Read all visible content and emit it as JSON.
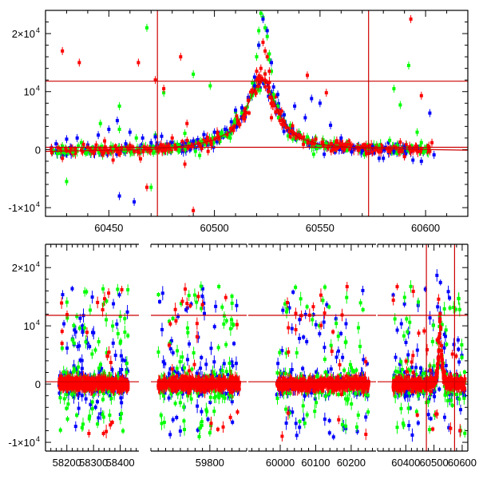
{
  "colors": {
    "red": "#ff0000",
    "green": "#00ff00",
    "blue": "#0000ff",
    "ref_line": "#cc0000",
    "axis": "#000000"
  },
  "chart_data": [
    {
      "type": "scatter",
      "title": "",
      "xlabel": "",
      "ylabel": "",
      "xlim": [
        60420,
        60620
      ],
      "ylim": [
        -11500,
        24000
      ],
      "grid": false,
      "legend": "none",
      "x_ticks": [
        60450,
        60500,
        60550,
        60600
      ],
      "y_ticks": [
        {
          "value": -10000,
          "label": "-1×10",
          "exp": "4"
        },
        {
          "value": 0,
          "label": "0",
          "exp": ""
        },
        {
          "value": 10000,
          "label": "10",
          "exp": "4"
        },
        {
          "value": 20000,
          "label": "2×10",
          "exp": "4"
        }
      ],
      "reference_lines": {
        "horizontal": [
          11800,
          400
        ],
        "vertical": [
          60473,
          60573
        ]
      },
      "model_curve": {
        "x": [
          60420,
          60470,
          60490,
          60500,
          60508,
          60514,
          60518,
          60521,
          60523,
          60525,
          60528,
          60532,
          60536,
          60540,
          60550,
          60570,
          60620
        ],
        "y": [
          -300,
          0,
          800,
          1700,
          3200,
          6200,
          9500,
          11600,
          12000,
          11300,
          8500,
          5200,
          3200,
          2000,
          900,
          200,
          -100
        ]
      },
      "series": [
        {
          "color": "green",
          "x": [
            60424,
            60428,
            60433,
            60437,
            60440,
            60446,
            60452,
            60455,
            60458,
            60463,
            60468,
            60472,
            60476,
            60480,
            60486,
            60490,
            60494,
            60498,
            60503,
            60507,
            60510,
            60513,
            60516,
            60518,
            60520,
            60521,
            60522,
            60523,
            60524,
            60525,
            60526,
            60527,
            60528,
            60530,
            60533,
            60536,
            60540,
            60544,
            60548,
            60553,
            60558,
            60563,
            60568,
            60573,
            60578,
            60583,
            60588,
            60592,
            60596,
            60600,
            60430,
            60455,
            60470,
            60493,
            60510,
            60517,
            60521,
            60526,
            60531,
            60547,
            60571,
            60585,
            60598,
            60486
          ],
          "y": [
            -200,
            600,
            -400,
            1200,
            500,
            4500,
            100,
            7500,
            -200,
            2000,
            21000,
            2500,
            9800,
            600,
            300,
            13000,
            1300,
            11000,
            2600,
            2500,
            4800,
            6300,
            8500,
            11500,
            16000,
            20500,
            23500,
            22800,
            21000,
            19500,
            16500,
            13500,
            9500,
            7500,
            6000,
            4200,
            3000,
            2200,
            2000,
            1000,
            800,
            1000,
            600,
            200,
            500,
            1600,
            7700,
            14500,
            3000,
            0,
            -5500,
            3500,
            -6500,
            -1000,
            6500,
            9000,
            18000,
            15500,
            5500,
            -800,
            -900,
            10500,
            1200,
            2800
          ]
        },
        {
          "color": "blue",
          "x": [
            60425,
            60430,
            60435,
            60440,
            60445,
            60450,
            60454,
            60458,
            60462,
            60466,
            60470,
            60475,
            60480,
            60485,
            60490,
            60495,
            60500,
            60505,
            60510,
            60513,
            60516,
            60519,
            60521,
            60523,
            60525,
            60527,
            60530,
            60533,
            60537,
            60540,
            60543,
            60546,
            60550,
            60555,
            60560,
            60565,
            60570,
            60575,
            60580,
            60585,
            60590,
            60594,
            60598,
            60602,
            60455,
            60460,
            60472,
            60508,
            60519,
            60528,
            60538,
            60552,
            60566,
            60578,
            60590,
            60604
          ],
          "y": [
            1000,
            1800,
            2000,
            800,
            2500,
            3500,
            5000,
            1000,
            -9000,
            2000,
            1200,
            2300,
            1300,
            600,
            1500,
            2600,
            3000,
            3500,
            6800,
            7200,
            9000,
            12500,
            18000,
            22500,
            20500,
            15000,
            9500,
            6000,
            3800,
            2600,
            5500,
            8800,
            8000,
            4200,
            2000,
            -400,
            -200,
            500,
            -1500,
            -300,
            400,
            -1800,
            -2000,
            6300,
            -8000,
            3000,
            2200,
            4800,
            11000,
            10800,
            7500,
            -800,
            400,
            -1500,
            -1000,
            -900
          ]
        },
        {
          "color": "red",
          "x": [
            60423,
            60428,
            60432,
            60436,
            60440,
            60444,
            60448,
            60452,
            60456,
            60460,
            60464,
            60468,
            60472,
            60476,
            60480,
            60484,
            60487,
            60490,
            60494,
            60498,
            60502,
            60506,
            60509,
            60512,
            60514,
            60516,
            60518,
            60520,
            60521,
            60522,
            60523,
            60524,
            60525,
            60526,
            60527,
            60529,
            60531,
            60534,
            60537,
            60540,
            60544,
            60548,
            60553,
            60558,
            60563,
            60568,
            60573,
            60578,
            60583,
            60588,
            60593,
            60598,
            60602,
            60428,
            60438,
            60465,
            60478,
            60486,
            60497,
            60511,
            60520,
            60527,
            60537,
            60546,
            60558,
            60572,
            60590,
            60603,
            60488,
            60462
          ],
          "y": [
            -500,
            17000,
            200,
            15000,
            400,
            800,
            1500,
            -1800,
            300,
            700,
            15000,
            -6500,
            12000,
            10500,
            2000,
            16000,
            4500,
            -10500,
            200,
            1500,
            2200,
            2600,
            3300,
            4300,
            6000,
            8500,
            10200,
            12000,
            12400,
            14000,
            18500,
            17000,
            16000,
            13500,
            9000,
            6500,
            5000,
            3800,
            3000,
            2500,
            12800,
            1800,
            9800,
            1200,
            900,
            400,
            600,
            -400,
            200,
            1300,
            22500,
            9300,
            -300,
            -1500,
            900,
            -1600,
            600,
            -2500,
            -300,
            4800,
            13500,
            5500,
            4100,
            1200,
            200,
            -700,
            -1200,
            1200,
            -12000,
            -300
          ]
        }
      ]
    },
    {
      "type": "scatter",
      "title": "",
      "xlabel": "",
      "ylabel": "",
      "x_panels": [
        {
          "xlim": [
            58120,
            58470
          ],
          "ticks": [
            58200,
            58300,
            58400
          ]
        },
        {
          "xlim": [
            59640,
            59900
          ],
          "ticks": [
            59800
          ]
        },
        {
          "xlim": [
            59910,
            60270
          ],
          "ticks": [
            60000,
            60100,
            60200
          ]
        },
        {
          "xlim": [
            60300,
            60620
          ],
          "ticks": [
            60400,
            60500,
            60600
          ]
        }
      ],
      "ylim": [
        -11500,
        24000
      ],
      "grid": false,
      "legend": "none",
      "y_ticks": [
        {
          "value": -10000,
          "label": "-1×10",
          "exp": "4"
        },
        {
          "value": 0,
          "label": "0",
          "exp": ""
        },
        {
          "value": 10000,
          "label": "10",
          "exp": "4"
        },
        {
          "value": 20000,
          "label": "2×10",
          "exp": "4"
        }
      ],
      "reference_lines": {
        "horizontal": [
          11800,
          400
        ],
        "vertical": [
          60473,
          60573
        ]
      },
      "observing_seasons": [
        {
          "range": [
            58170,
            58430
          ],
          "peak": null
        },
        {
          "range": [
            59660,
            59880
          ],
          "peak": null
        },
        {
          "range": [
            59990,
            60250
          ],
          "peak": null
        },
        {
          "range": [
            60355,
            60610
          ],
          "peak": 60522
        }
      ]
    }
  ]
}
